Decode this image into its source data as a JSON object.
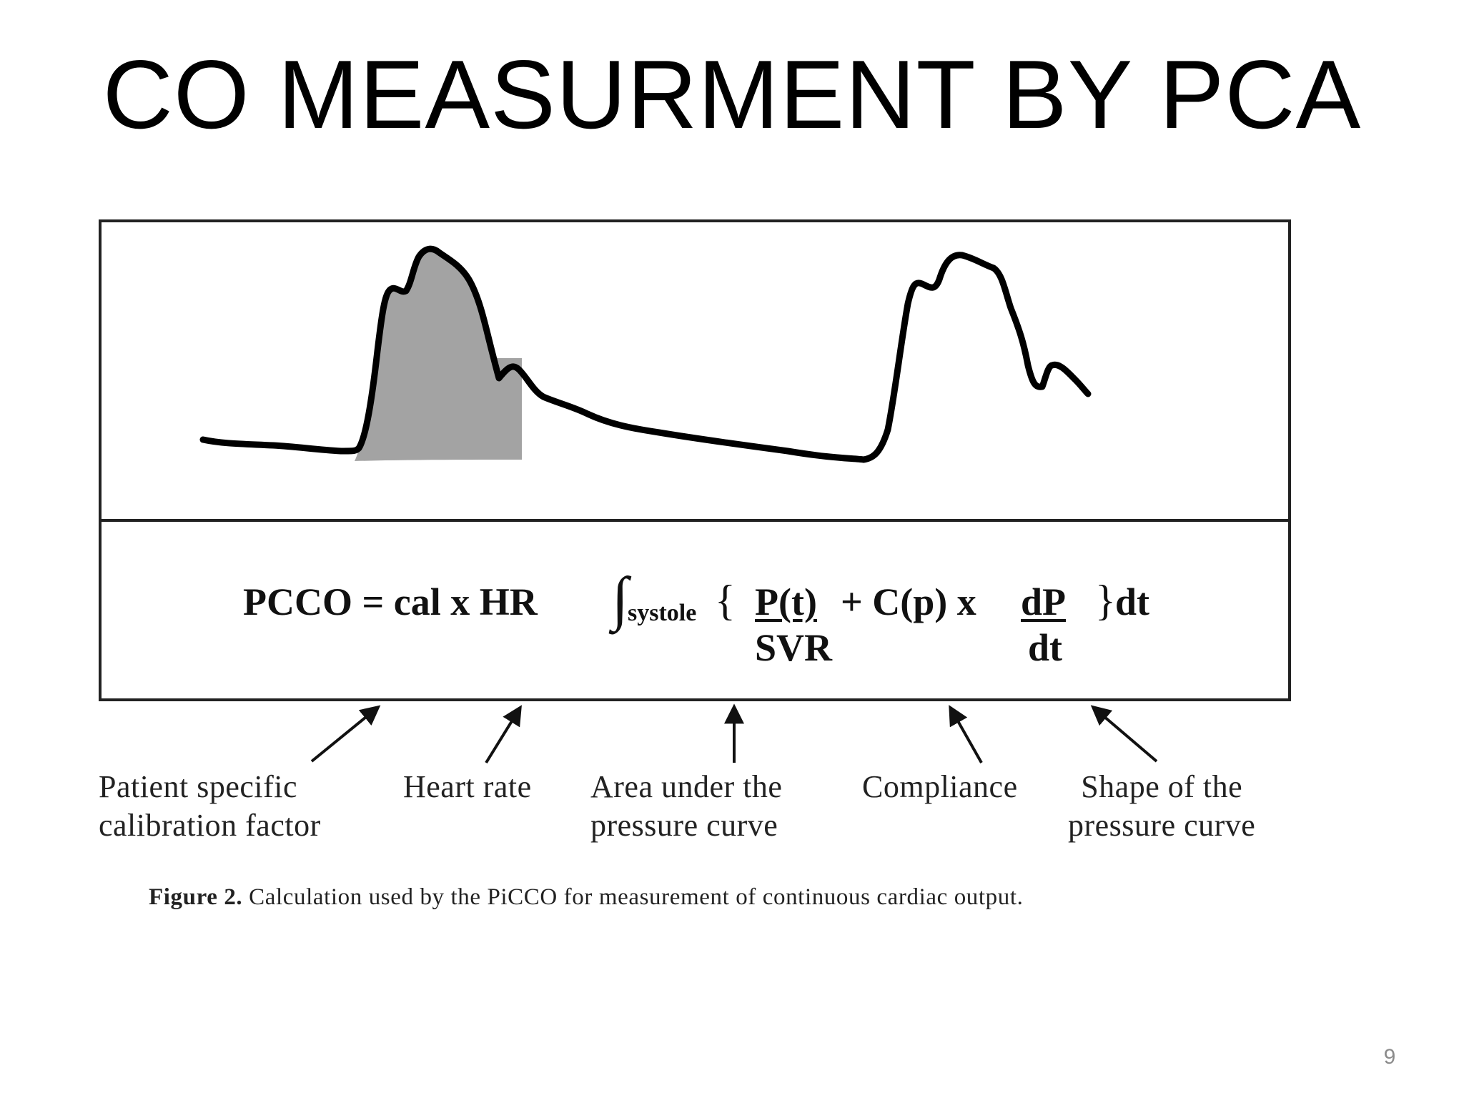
{
  "slide": {
    "title": "CO MEASURMENT BY PCA",
    "page_number": "9"
  },
  "formula": {
    "lhs": "PCCO = cal x HR",
    "integral_symbol": "∫",
    "integral_subscript": "systole",
    "open_brace": "{",
    "fraction1_numerator": "P(t)",
    "fraction1_denominator": "SVR",
    "middle": "+ C(p) x",
    "fraction2_numerator": "dP",
    "fraction2_denominator": "dt",
    "close_brace": "}",
    "suffix": "dt"
  },
  "labels": {
    "calibration": [
      "Patient specific",
      "calibration factor"
    ],
    "heart_rate": [
      "Heart rate"
    ],
    "area": [
      "Area under the",
      "pressure curve"
    ],
    "compliance": [
      "Compliance"
    ],
    "shape": [
      "Shape of the",
      "pressure curve"
    ]
  },
  "caption": {
    "bold": "Figure 2.",
    "text": " Calculation used by the PiCCO for measurement of continuous cardiac output."
  },
  "colors": {
    "waveform": "#000000",
    "shaded_area": "#a3a3a3",
    "text": "#111111",
    "page_number": "#8c8c8c"
  }
}
